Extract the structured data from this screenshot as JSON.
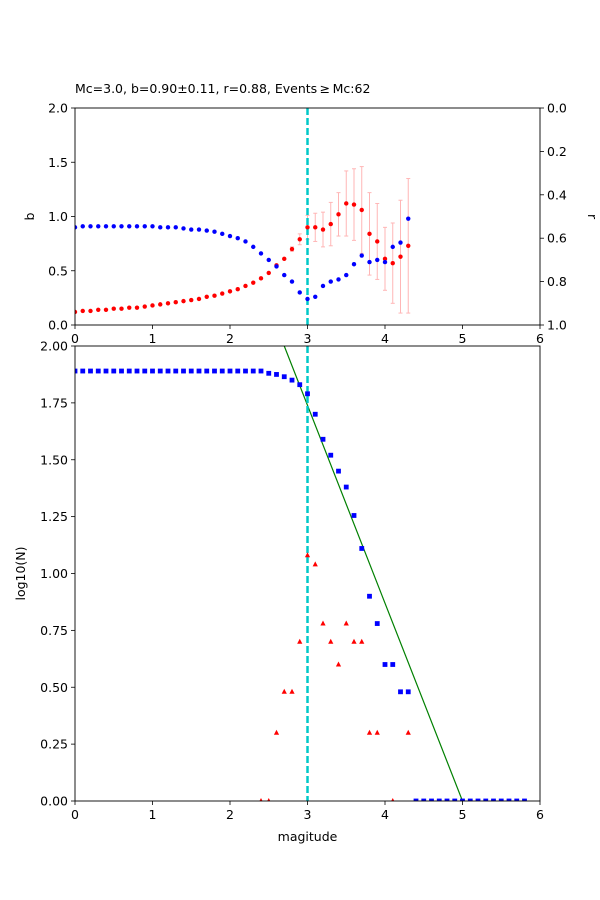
{
  "title": "Mc=3.0, b=0.90±0.11, r=0.88, Events ≥ Mc:62",
  "colors": {
    "b_series": "#ff0000",
    "r_series": "#0000ff",
    "errorbar": "#ffb6b6",
    "mc_line": "#00c8c8",
    "cumulative": "#0000ff",
    "noncumulative": "#ff0000",
    "fit": "#008000"
  },
  "chart_data": [
    {
      "type": "scatter",
      "name": "top",
      "title": "Mc=3.0, b=0.90±0.11, r=0.88, Events ≥ Mc:62",
      "xlabel": "",
      "ylabel": "b",
      "ylabel_right": "r",
      "xlim": [
        0,
        6
      ],
      "ylim": [
        0,
        2
      ],
      "ylim_right": [
        1,
        0
      ],
      "right_axis_inverted": true,
      "xticks": [
        "0",
        "1",
        "2",
        "3",
        "4",
        "5",
        "6"
      ],
      "yticks": [
        "0.0",
        "0.5",
        "1.0",
        "1.5",
        "2.0"
      ],
      "yticks_right": [
        "0.0",
        "0.2",
        "0.4",
        "0.6",
        "0.8",
        "1.0"
      ],
      "mc_line_x": 3.0,
      "series": [
        {
          "name": "b",
          "axis": "left",
          "x": [
            0.0,
            0.1,
            0.2,
            0.3,
            0.4,
            0.5,
            0.6,
            0.7,
            0.8,
            0.9,
            1.0,
            1.1,
            1.2,
            1.3,
            1.4,
            1.5,
            1.6,
            1.7,
            1.8,
            1.9,
            2.0,
            2.1,
            2.2,
            2.3,
            2.4,
            2.5,
            2.6,
            2.7,
            2.8,
            2.9,
            3.0,
            3.1,
            3.2,
            3.3,
            3.4,
            3.5,
            3.6,
            3.7,
            3.8,
            3.9,
            4.0,
            4.1,
            4.2,
            4.3
          ],
          "y": [
            0.12,
            0.13,
            0.13,
            0.14,
            0.14,
            0.15,
            0.15,
            0.16,
            0.16,
            0.17,
            0.18,
            0.19,
            0.2,
            0.21,
            0.22,
            0.23,
            0.24,
            0.26,
            0.27,
            0.29,
            0.31,
            0.33,
            0.36,
            0.39,
            0.43,
            0.48,
            0.55,
            0.61,
            0.7,
            0.79,
            0.9,
            0.9,
            0.88,
            0.93,
            1.02,
            1.12,
            1.11,
            1.06,
            0.84,
            0.77,
            0.61,
            0.57,
            0.63,
            0.73
          ],
          "err": [
            0,
            0,
            0,
            0,
            0,
            0,
            0,
            0,
            0,
            0,
            0,
            0,
            0,
            0,
            0,
            0,
            0,
            0,
            0,
            0,
            0,
            0,
            0,
            0,
            0,
            0,
            0,
            0,
            0.02,
            0.05,
            0.11,
            0.13,
            0.16,
            0.2,
            0.2,
            0.3,
            0.33,
            0.4,
            0.38,
            0.35,
            0.29,
            0.37,
            0.52,
            0.62
          ]
        },
        {
          "name": "r",
          "axis": "right",
          "x": [
            0.0,
            0.1,
            0.2,
            0.3,
            0.4,
            0.5,
            0.6,
            0.7,
            0.8,
            0.9,
            1.0,
            1.1,
            1.2,
            1.3,
            1.4,
            1.5,
            1.6,
            1.7,
            1.8,
            1.9,
            2.0,
            2.1,
            2.2,
            2.3,
            2.4,
            2.5,
            2.6,
            2.7,
            2.8,
            2.9,
            3.0,
            3.1,
            3.2,
            3.3,
            3.4,
            3.5,
            3.6,
            3.7,
            3.8,
            3.9,
            4.0,
            4.1,
            4.2,
            4.3
          ],
          "y": [
            0.55,
            0.545,
            0.545,
            0.545,
            0.545,
            0.545,
            0.545,
            0.545,
            0.545,
            0.545,
            0.545,
            0.55,
            0.55,
            0.55,
            0.555,
            0.56,
            0.56,
            0.565,
            0.57,
            0.58,
            0.59,
            0.6,
            0.615,
            0.64,
            0.67,
            0.7,
            0.73,
            0.77,
            0.8,
            0.85,
            0.88,
            0.87,
            0.82,
            0.8,
            0.79,
            0.77,
            0.72,
            0.68,
            0.71,
            0.7,
            0.71,
            0.64,
            0.62,
            0.51
          ]
        }
      ]
    },
    {
      "type": "scatter",
      "name": "bottom",
      "xlabel": "magitude",
      "ylabel": "log10(N)",
      "xlim": [
        0,
        6
      ],
      "ylim": [
        0,
        2
      ],
      "xticks": [
        "0",
        "1",
        "2",
        "3",
        "4",
        "5",
        "6"
      ],
      "yticks": [
        "0.00",
        "0.25",
        "0.50",
        "0.75",
        "1.00",
        "1.25",
        "1.50",
        "1.75",
        "2.00"
      ],
      "mc_line_x": 3.0,
      "fit_line": {
        "x": [
          2.7,
          5.0
        ],
        "y": [
          2.0,
          0.0
        ]
      },
      "series": [
        {
          "name": "cumulative",
          "marker": "square",
          "x": [
            0.0,
            0.1,
            0.2,
            0.3,
            0.4,
            0.5,
            0.6,
            0.7,
            0.8,
            0.9,
            1.0,
            1.1,
            1.2,
            1.3,
            1.4,
            1.5,
            1.6,
            1.7,
            1.8,
            1.9,
            2.0,
            2.1,
            2.2,
            2.3,
            2.4,
            2.5,
            2.6,
            2.7,
            2.8,
            2.9,
            3.0,
            3.1,
            3.2,
            3.3,
            3.4,
            3.5,
            3.6,
            3.7,
            3.8,
            3.9,
            4.0,
            4.1,
            4.2,
            4.3,
            4.4,
            4.5,
            4.6,
            4.7,
            4.8,
            4.9,
            5.0,
            5.1,
            5.2,
            5.3,
            5.4,
            5.5,
            5.6,
            5.7,
            5.8
          ],
          "y": [
            1.89,
            1.89,
            1.89,
            1.89,
            1.89,
            1.89,
            1.89,
            1.89,
            1.89,
            1.89,
            1.89,
            1.89,
            1.89,
            1.89,
            1.89,
            1.89,
            1.89,
            1.89,
            1.89,
            1.89,
            1.89,
            1.89,
            1.89,
            1.89,
            1.89,
            1.88,
            1.875,
            1.865,
            1.85,
            1.83,
            1.79,
            1.7,
            1.59,
            1.52,
            1.45,
            1.38,
            1.255,
            1.11,
            0.9,
            0.78,
            0.6,
            0.6,
            0.48,
            0.48,
            0,
            0,
            0,
            0,
            0,
            0,
            0,
            0,
            0,
            0,
            0,
            0,
            0,
            0,
            0
          ]
        },
        {
          "name": "non-cumulative",
          "marker": "triangle",
          "x": [
            2.4,
            2.5,
            2.6,
            2.7,
            2.8,
            2.9,
            3.0,
            3.1,
            3.2,
            3.3,
            3.4,
            3.5,
            3.6,
            3.7,
            3.8,
            3.9,
            4.1,
            4.3
          ],
          "y": [
            0.0,
            0.0,
            0.3,
            0.48,
            0.48,
            0.7,
            1.08,
            1.04,
            0.78,
            0.7,
            0.6,
            0.78,
            0.7,
            0.7,
            0.3,
            0.3,
            0.0,
            0.3
          ]
        }
      ]
    }
  ]
}
